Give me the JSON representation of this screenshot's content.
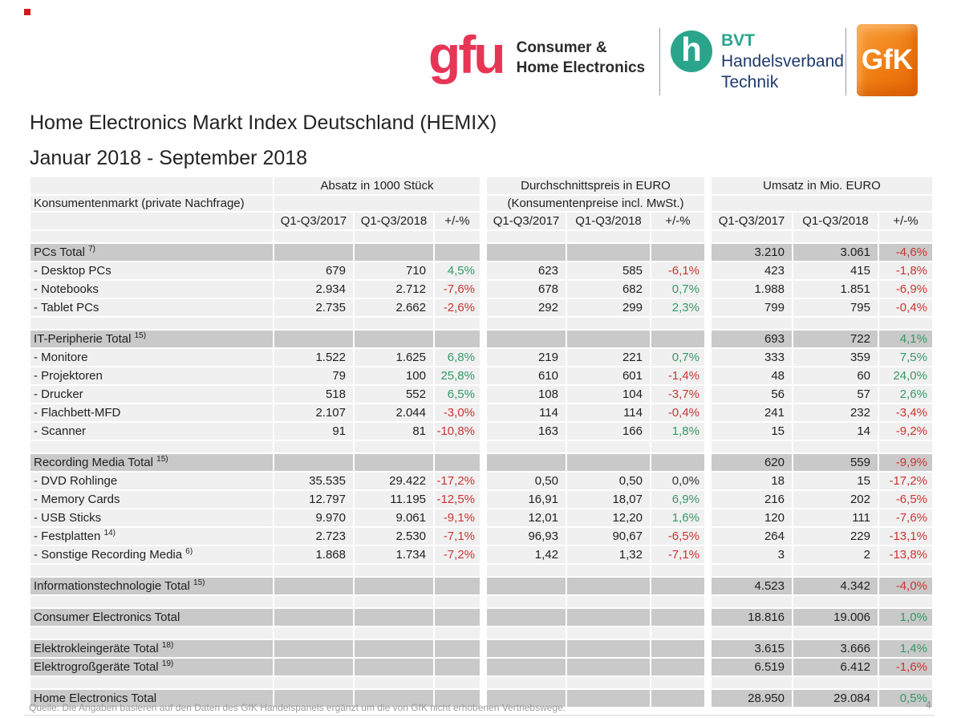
{
  "marker_color": "#d11a1c",
  "header": {
    "gfu": {
      "wordmark": "gfu",
      "tagline1": "Consumer &",
      "tagline2": "Home Electronics",
      "color": "#e73556"
    },
    "bvt": {
      "glyph": "h",
      "abbr": "BVT",
      "line2": "Handelsverband",
      "line3": "Technik",
      "teal": "#2aa58b",
      "navy": "#1e3a6b"
    },
    "gfk": {
      "wordmark": "GfK",
      "orange_light": "#f9a03c",
      "orange_dark": "#ef7d12"
    }
  },
  "title": "Home Electronics Markt Index Deutschland (HEMIX)",
  "subtitle": "Januar 2018 - September 2018",
  "table": {
    "row_header": "Konsumentenmarkt (private Nachfrage)",
    "groups": [
      {
        "title": "Absatz in 1000 Stück",
        "subtitle": ""
      },
      {
        "title": "Durchschnittspreis in EURO",
        "subtitle": "(Konsumentenpreise incl. MwSt.)"
      },
      {
        "title": "Umsatz in Mio. EURO",
        "subtitle": ""
      }
    ],
    "col_headers": [
      "Q1-Q3/2017",
      "Q1-Q3/2018",
      "+/-%"
    ],
    "colors": {
      "positive": "#339966",
      "negative": "#cc3333",
      "neutral": "#333333",
      "section_band": "#c9c9c9",
      "row_band": "#f0f0f0"
    },
    "rows": [
      {
        "type": "spacer"
      },
      {
        "type": "section",
        "label": "PCs Total",
        "sup": "7)",
        "cells": [
          "",
          "",
          "",
          "",
          "",
          "",
          "3.210",
          "3.061",
          "-4,6%"
        ]
      },
      {
        "type": "item",
        "label": "- Desktop PCs",
        "sup": "",
        "cells": [
          "679",
          "710",
          "4,5%",
          "623",
          "585",
          "-6,1%",
          "423",
          "415",
          "-1,8%"
        ]
      },
      {
        "type": "item",
        "label": "- Notebooks",
        "sup": "",
        "cells": [
          "2.934",
          "2.712",
          "-7,6%",
          "678",
          "682",
          "0,7%",
          "1.988",
          "1.851",
          "-6,9%"
        ]
      },
      {
        "type": "item",
        "label": "- Tablet PCs",
        "sup": "",
        "cells": [
          "2.735",
          "2.662",
          "-2,6%",
          "292",
          "299",
          "2,3%",
          "799",
          "795",
          "-0,4%"
        ]
      },
      {
        "type": "spacer"
      },
      {
        "type": "section",
        "label": "IT-Peripherie Total",
        "sup": "15)",
        "cells": [
          "",
          "",
          "",
          "",
          "",
          "",
          "693",
          "722",
          "4,1%"
        ]
      },
      {
        "type": "item",
        "label": "- Monitore",
        "sup": "",
        "cells": [
          "1.522",
          "1.625",
          "6,8%",
          "219",
          "221",
          "0,7%",
          "333",
          "359",
          "7,5%"
        ]
      },
      {
        "type": "item",
        "label": "- Projektoren",
        "sup": "",
        "cells": [
          "79",
          "100",
          "25,8%",
          "610",
          "601",
          "-1,4%",
          "48",
          "60",
          "24,0%"
        ]
      },
      {
        "type": "item",
        "label": "- Drucker",
        "sup": "",
        "cells": [
          "518",
          "552",
          "6,5%",
          "108",
          "104",
          "-3,7%",
          "56",
          "57",
          "2,6%"
        ]
      },
      {
        "type": "item",
        "label": "- Flachbett-MFD",
        "sup": "",
        "cells": [
          "2.107",
          "2.044",
          "-3,0%",
          "114",
          "114",
          "-0,4%",
          "241",
          "232",
          "-3,4%"
        ]
      },
      {
        "type": "item",
        "label": "- Scanner",
        "sup": "",
        "cells": [
          "91",
          "81",
          "-10,8%",
          "163",
          "166",
          "1,8%",
          "15",
          "14",
          "-9,2%"
        ]
      },
      {
        "type": "spacer"
      },
      {
        "type": "section",
        "label": "Recording Media Total",
        "sup": "15)",
        "cells": [
          "",
          "",
          "",
          "",
          "",
          "",
          "620",
          "559",
          "-9,9%"
        ]
      },
      {
        "type": "item",
        "label": "- DVD Rohlinge",
        "sup": "",
        "cells": [
          "35.535",
          "29.422",
          "-17,2%",
          "0,50",
          "0,50",
          "0,0%",
          "18",
          "15",
          "-17,2%"
        ]
      },
      {
        "type": "item",
        "label": "- Memory Cards",
        "sup": "",
        "cells": [
          "12.797",
          "11.195",
          "-12,5%",
          "16,91",
          "18,07",
          "6,9%",
          "216",
          "202",
          "-6,5%"
        ]
      },
      {
        "type": "item",
        "label": "- USB Sticks",
        "sup": "",
        "cells": [
          "9.970",
          "9.061",
          "-9,1%",
          "12,01",
          "12,20",
          "1,6%",
          "120",
          "111",
          "-7,6%"
        ]
      },
      {
        "type": "item",
        "label": "- Festplatten",
        "sup": "14)",
        "cells": [
          "2.723",
          "2.530",
          "-7,1%",
          "96,93",
          "90,67",
          "-6,5%",
          "264",
          "229",
          "-13,1%"
        ]
      },
      {
        "type": "item",
        "label": "- Sonstige Recording Media",
        "sup": "6)",
        "cells": [
          "1.868",
          "1.734",
          "-7,2%",
          "1,42",
          "1,32",
          "-7,1%",
          "3",
          "2",
          "-13,8%"
        ]
      },
      {
        "type": "spacer"
      },
      {
        "type": "section",
        "label": "Informationstechnologie Total",
        "sup": "15)",
        "cells": [
          "",
          "",
          "",
          "",
          "",
          "",
          "4.523",
          "4.342",
          "-4,0%"
        ]
      },
      {
        "type": "spacer"
      },
      {
        "type": "section",
        "label": "Consumer Electronics Total",
        "sup": "",
        "cells": [
          "",
          "",
          "",
          "",
          "",
          "",
          "18.816",
          "19.006",
          "1,0%"
        ]
      },
      {
        "type": "spacer"
      },
      {
        "type": "section",
        "label": "Elektrokleingeräte Total",
        "sup": "18)",
        "cells": [
          "",
          "",
          "",
          "",
          "",
          "",
          "3.615",
          "3.666",
          "1,4%"
        ]
      },
      {
        "type": "section",
        "label": "Elektrogroßgeräte Total",
        "sup": "19)",
        "cells": [
          "",
          "",
          "",
          "",
          "",
          "",
          "6.519",
          "6.412",
          "-1,6%"
        ]
      },
      {
        "type": "spacer"
      },
      {
        "type": "section",
        "label": "Home Electronics Total",
        "sup": "",
        "cells": [
          "",
          "",
          "",
          "",
          "",
          "",
          "28.950",
          "29.084",
          "0,5%"
        ]
      }
    ]
  },
  "footer": {
    "source": "Quelle: Die Angaben basieren auf den Daten des GfK Handelspanels ergänzt um die von GfK nicht erhobenen Vertriebswege.",
    "page": "4"
  }
}
